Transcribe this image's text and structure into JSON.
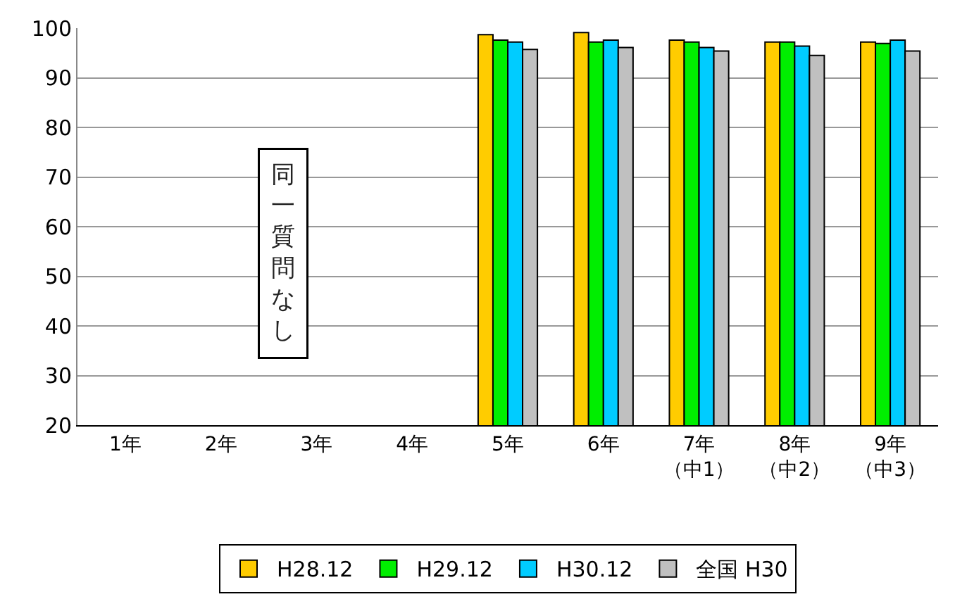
{
  "chart_data": {
    "type": "bar",
    "categories": [
      "1年",
      "2年",
      "3年",
      "4年",
      "5年",
      "6年",
      "7年（中1）",
      "8年（中2）",
      "9年（中3）"
    ],
    "series": [
      {
        "name": "H28.12",
        "color": "#ffcc00",
        "values": [
          null,
          null,
          null,
          null,
          98.7,
          99.1,
          97.6,
          97.2,
          97.2
        ]
      },
      {
        "name": "H29.12",
        "color": "#00ee00",
        "values": [
          null,
          null,
          null,
          null,
          97.6,
          97.2,
          97.2,
          97.2,
          96.9
        ]
      },
      {
        "name": "H30.12",
        "color": "#00ccff",
        "values": [
          null,
          null,
          null,
          null,
          97.2,
          97.6,
          96.1,
          96.4,
          97.6
        ]
      },
      {
        "name": "全国 H30",
        "color": "#c0c0c0",
        "values": [
          null,
          null,
          null,
          null,
          95.7,
          96.1,
          95.4,
          94.5,
          95.4
        ]
      }
    ],
    "ylim": [
      20,
      100
    ],
    "yticks": [
      20,
      30,
      40,
      50,
      60,
      70,
      80,
      90,
      100
    ],
    "grid": "y",
    "legend": "bottom",
    "annotations": [
      "同一質問なし"
    ]
  }
}
